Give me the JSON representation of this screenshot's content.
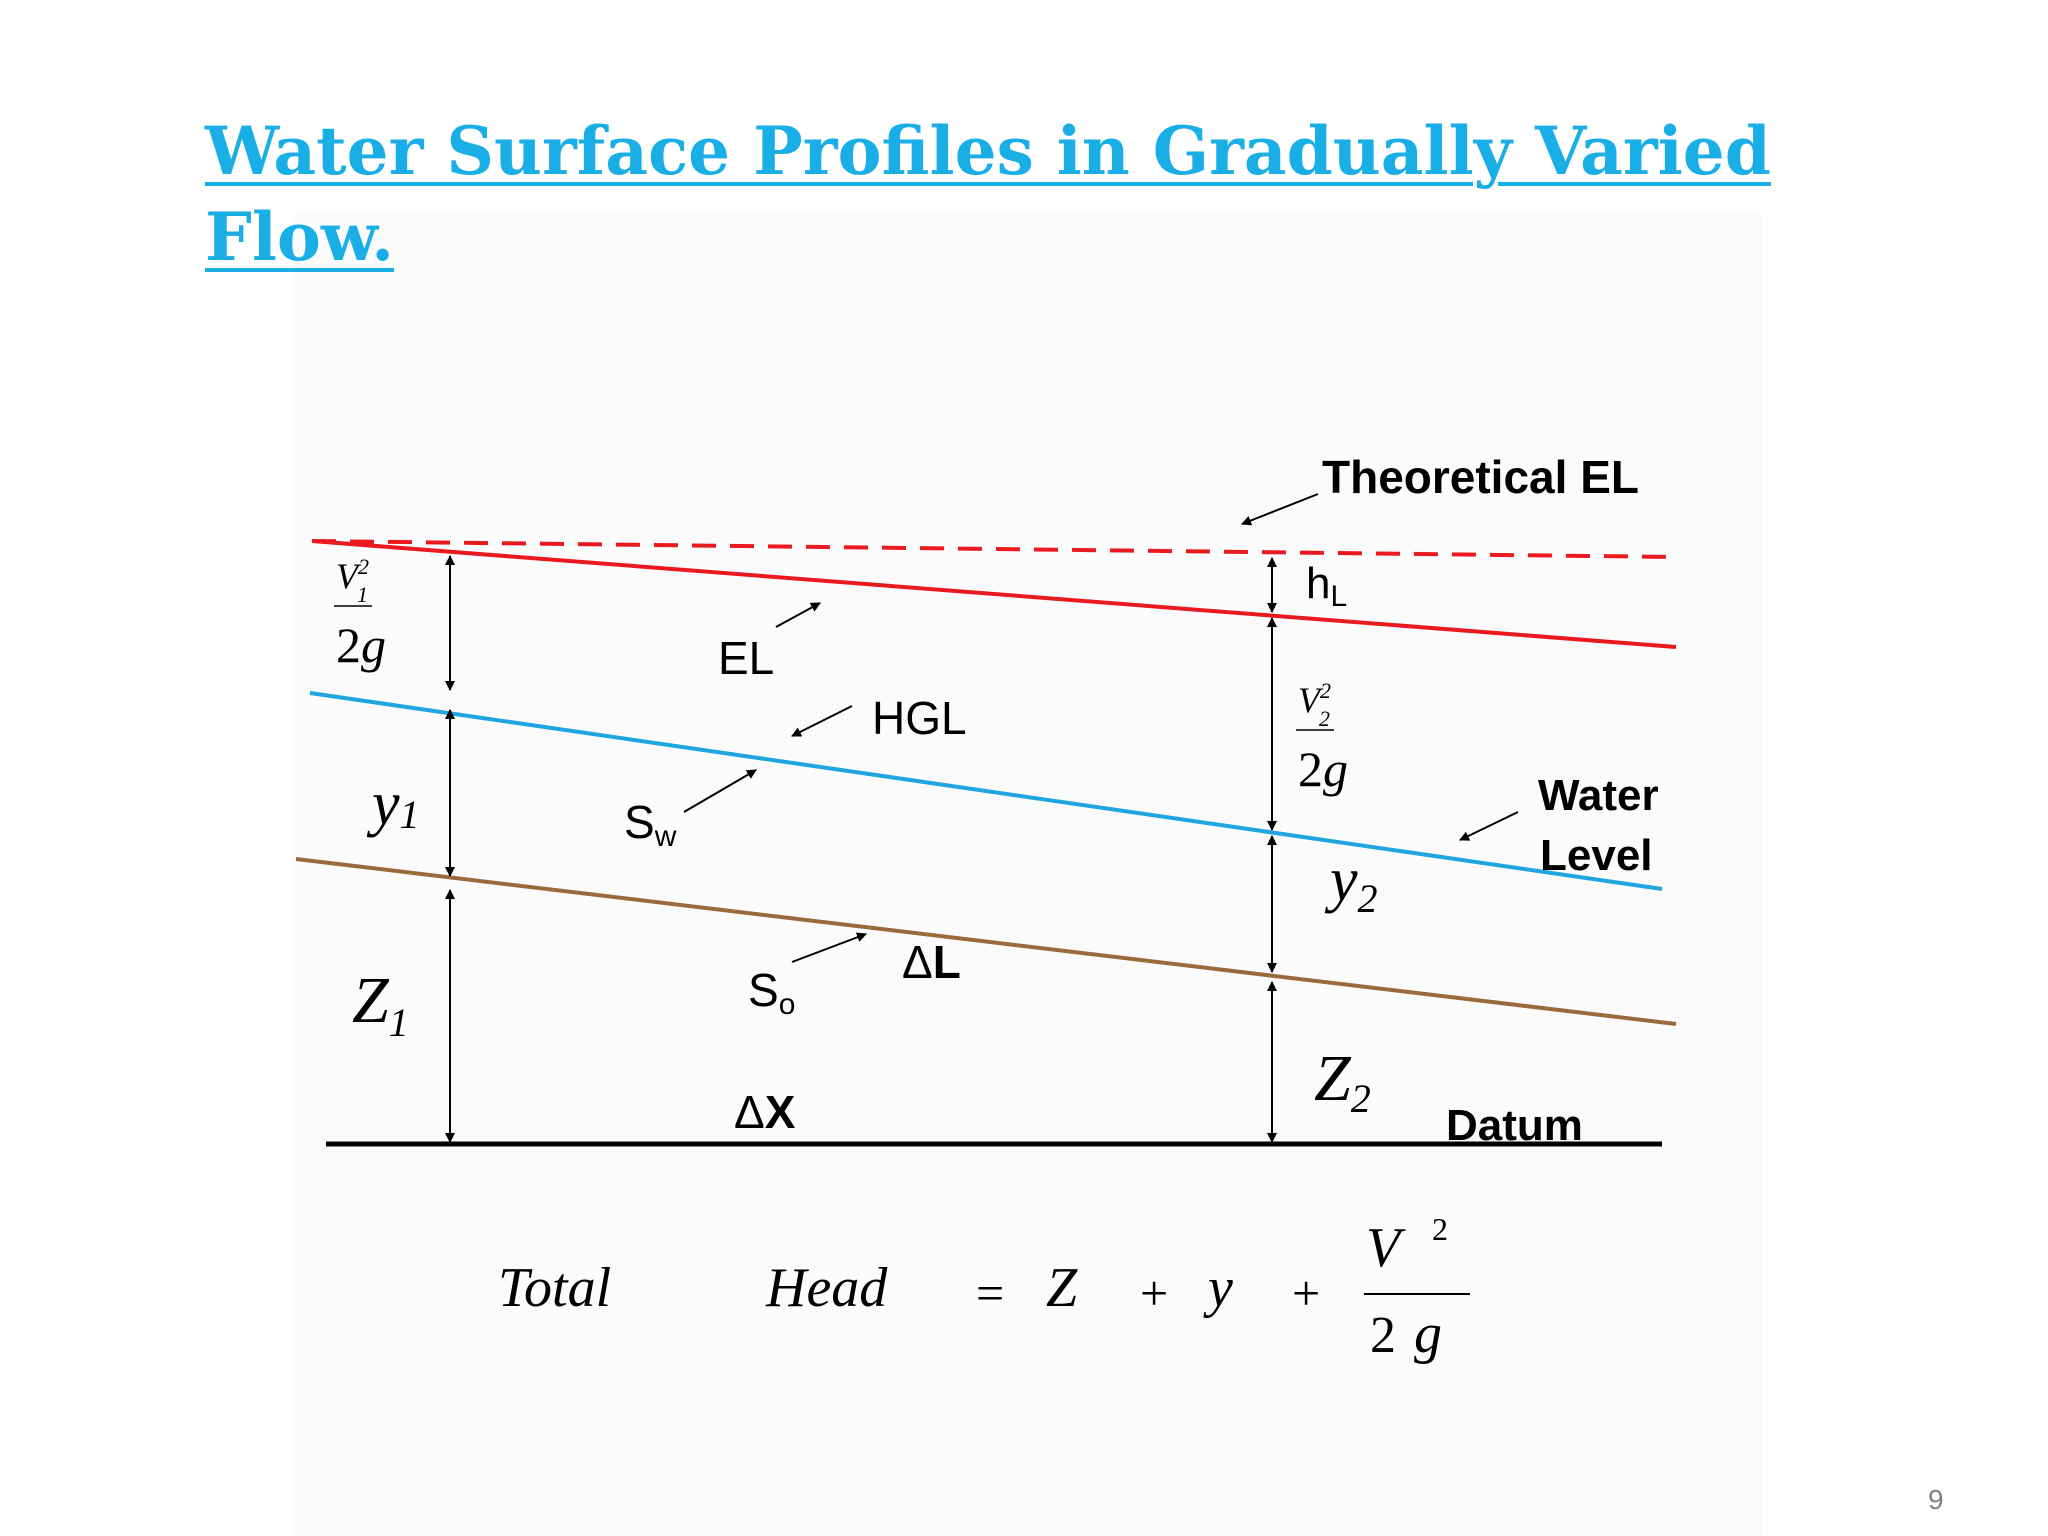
{
  "slide": {
    "title": "Water Surface Profiles in Gradually Varied Flow.",
    "page_number": "9"
  },
  "diagram": {
    "labels": {
      "theoretical_el": "Theoretical EL",
      "el": "EL",
      "hgl": "HGL",
      "water_level_line1": "Water",
      "water_level_line2": "Level",
      "datum": "Datum",
      "h": "h",
      "h_sub": "L",
      "s_w": "S",
      "s_w_sub": "w",
      "s_o": "S",
      "s_o_sub": "o",
      "delta_l_symbol": "Δ",
      "delta_l_letter": "L",
      "delta_x_symbol": "Δ",
      "delta_x_letter": "X",
      "v": "V",
      "sup_2": "2",
      "sub_1": "1",
      "sub_2": "2",
      "two_g_num": "2",
      "g": "g",
      "y": "y",
      "z": "Z"
    },
    "colors": {
      "energy_line": "#e8191f",
      "hydraulic_grade_line": "#1fa6e0",
      "channel_bed": "#9b6a3c",
      "datum": "#000000",
      "title": "#1aaee6"
    }
  },
  "equation": {
    "total": "Total",
    "head": "Head",
    "equals": "=",
    "z": "Z",
    "plus1": "+",
    "y": "y",
    "plus2": "+",
    "v": "V",
    "exponent": "2",
    "denominator_2": "2",
    "denominator_g": "g"
  }
}
